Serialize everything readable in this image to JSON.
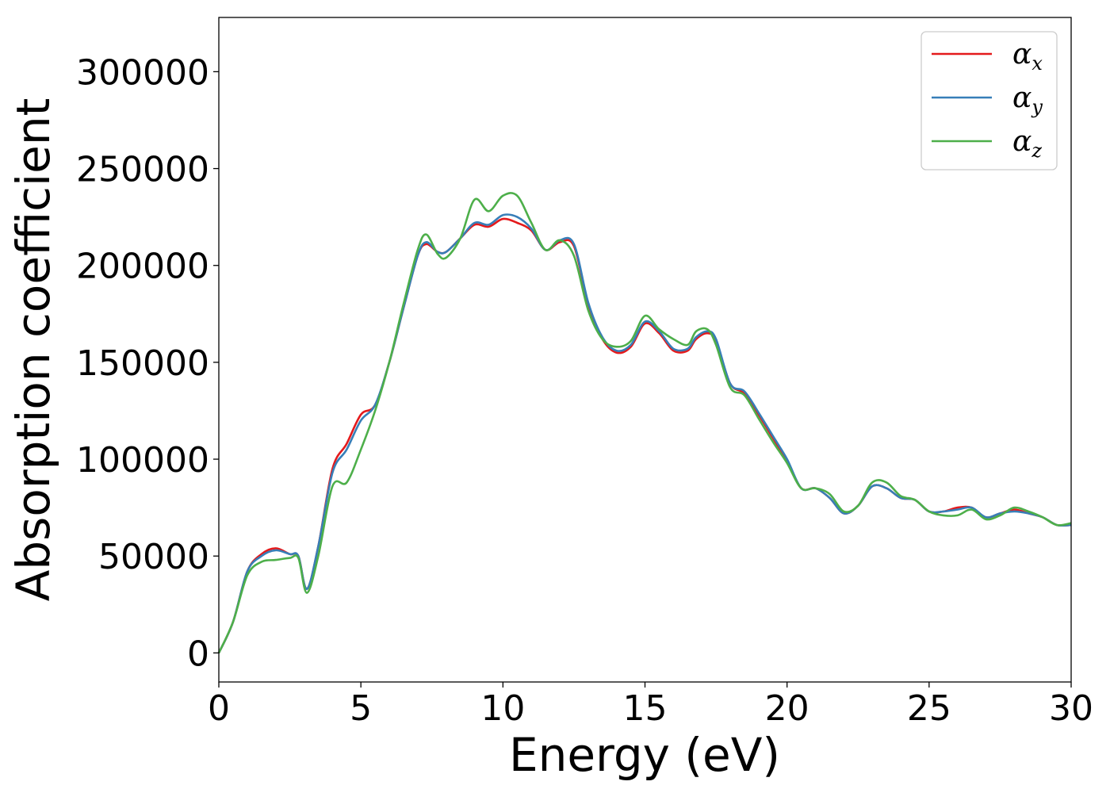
{
  "chart_data": {
    "type": "line",
    "title": "",
    "xlabel": "Energy (eV)",
    "ylabel": "Absorption coefficient",
    "xlim": [
      0,
      30
    ],
    "ylim": [
      -15000,
      328000
    ],
    "xticks": [
      0,
      5,
      10,
      15,
      20,
      25,
      30
    ],
    "xtick_labels": [
      "0",
      "5",
      "10",
      "15",
      "20",
      "25",
      "30"
    ],
    "yticks": [
      0,
      50000,
      100000,
      150000,
      200000,
      250000,
      300000
    ],
    "ytick_labels": [
      "0",
      "50000",
      "100000",
      "150000",
      "200000",
      "250000",
      "300000"
    ],
    "grid": false,
    "legend_position": "top-right",
    "series": [
      {
        "name": "αx",
        "symbol": "α",
        "subscript": "x",
        "color": "#e41a1c",
        "x": [
          0,
          0.5,
          1,
          1.5,
          2,
          2.5,
          2.8,
          3.1,
          3.5,
          4,
          4.5,
          5,
          5.5,
          6,
          6.5,
          7,
          7.3,
          7.7,
          8,
          8.5,
          9,
          9.5,
          10,
          10.5,
          11,
          11.5,
          12,
          12.5,
          13,
          13.5,
          14,
          14.5,
          15,
          15.5,
          16,
          16.5,
          16.8,
          17.2,
          17.5,
          18,
          18.5,
          19,
          19.5,
          20,
          20.5,
          21,
          21.5,
          22,
          22.5,
          23,
          23.5,
          24,
          24.5,
          25,
          25.5,
          26,
          26.5,
          27,
          27.5,
          28,
          28.5,
          29,
          29.5,
          30
        ],
        "y": [
          0,
          16000,
          42000,
          51000,
          54000,
          51000,
          50000,
          33000,
          55000,
          95000,
          108000,
          123000,
          128000,
          150000,
          178000,
          205000,
          211000,
          207000,
          207000,
          214000,
          221000,
          220000,
          224000,
          222000,
          218000,
          208000,
          212000,
          210000,
          180000,
          162000,
          155000,
          158000,
          170000,
          165000,
          156000,
          156000,
          162000,
          165000,
          161000,
          139000,
          134000,
          123000,
          111000,
          99000,
          85000,
          85000,
          80000,
          72000,
          76000,
          86000,
          85000,
          80000,
          79000,
          73000,
          73000,
          75000,
          75000,
          70000,
          72000,
          74000,
          72000,
          70000,
          66000,
          66000
        ]
      },
      {
        "name": "αy",
        "symbol": "α",
        "subscript": "y",
        "color": "#377eb8",
        "x": [
          0,
          0.5,
          1,
          1.5,
          2,
          2.5,
          2.8,
          3.1,
          3.5,
          4,
          4.5,
          5,
          5.5,
          6,
          6.5,
          7,
          7.3,
          7.7,
          8,
          8.5,
          9,
          9.5,
          10,
          10.5,
          11,
          11.5,
          12,
          12.5,
          13,
          13.5,
          14,
          14.5,
          15,
          15.5,
          16,
          16.5,
          16.8,
          17.2,
          17.5,
          18,
          18.5,
          19,
          19.5,
          20,
          20.5,
          21,
          21.5,
          22,
          22.5,
          23,
          23.5,
          24,
          24.5,
          25,
          25.5,
          26,
          26.5,
          27,
          27.5,
          28,
          28.5,
          29,
          29.5,
          30
        ],
        "y": [
          0,
          16000,
          42000,
          50000,
          53000,
          51000,
          50000,
          33000,
          55000,
          93000,
          105000,
          120000,
          128000,
          150000,
          178000,
          205000,
          212000,
          207000,
          207000,
          214000,
          222000,
          221000,
          226000,
          225000,
          219000,
          208000,
          213000,
          211000,
          181000,
          163000,
          156000,
          159000,
          171000,
          166000,
          157000,
          157000,
          163000,
          166000,
          162000,
          139000,
          135000,
          124000,
          112000,
          100000,
          85000,
          85000,
          80000,
          72000,
          76000,
          86000,
          85000,
          80000,
          79000,
          73000,
          73000,
          74000,
          75000,
          70000,
          72000,
          73000,
          72000,
          70000,
          66000,
          66000
        ]
      },
      {
        "name": "αz",
        "symbol": "α",
        "subscript": "z",
        "color": "#4daf4a",
        "x": [
          0,
          0.5,
          1,
          1.5,
          2,
          2.5,
          2.8,
          3.1,
          3.5,
          4,
          4.5,
          5,
          5.5,
          6,
          6.5,
          7,
          7.3,
          7.7,
          8,
          8.5,
          9,
          9.5,
          10,
          10.5,
          11,
          11.5,
          12,
          12.5,
          13,
          13.5,
          14,
          14.5,
          15,
          15.5,
          16,
          16.5,
          16.8,
          17.2,
          17.5,
          18,
          18.5,
          19,
          19.5,
          20,
          20.5,
          21,
          21.5,
          22,
          22.5,
          23,
          23.5,
          24,
          24.5,
          25,
          25.5,
          26,
          26.5,
          27,
          27.5,
          28,
          28.5,
          29,
          29.5,
          30
        ],
        "y": [
          0,
          16000,
          40000,
          47000,
          48000,
          49000,
          49000,
          31000,
          50000,
          86000,
          88000,
          105000,
          125000,
          150000,
          180000,
          208000,
          216000,
          206000,
          204000,
          214000,
          234000,
          228000,
          236000,
          236000,
          222000,
          208000,
          213000,
          205000,
          177000,
          162000,
          158000,
          161000,
          174000,
          167000,
          162000,
          159000,
          166000,
          167000,
          159000,
          137000,
          133000,
          121000,
          109000,
          98000,
          85000,
          85000,
          82000,
          73000,
          76000,
          88000,
          88000,
          81000,
          79000,
          73000,
          71000,
          71000,
          74000,
          69000,
          71000,
          75000,
          73000,
          70000,
          66000,
          67000
        ]
      }
    ]
  }
}
